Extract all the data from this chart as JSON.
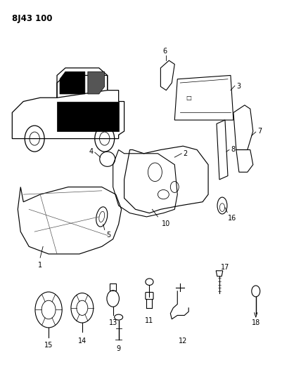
{
  "title": "8J43 100",
  "background_color": "#ffffff",
  "fig_width": 4.01,
  "fig_height": 5.33,
  "dpi": 100
}
